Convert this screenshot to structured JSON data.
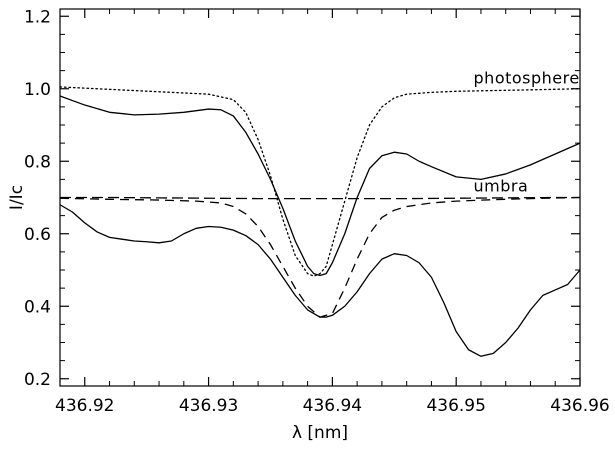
{
  "chart_data": {
    "type": "line",
    "xlabel": "λ [nm]",
    "ylabel": "I/Ic",
    "xlim": [
      436.918,
      436.96
    ],
    "ylim": [
      0.18,
      1.22
    ],
    "x_ticks": [
      436.92,
      436.93,
      436.94,
      436.95,
      436.96
    ],
    "x_tick_labels": [
      "436.92",
      "436.93",
      "436.94",
      "436.95",
      "436.96"
    ],
    "y_ticks": [
      0.2,
      0.4,
      0.6,
      0.8,
      1.0,
      1.2
    ],
    "y_tick_labels": [
      "0.2",
      "0.4",
      "0.6",
      "0.8",
      "1.0",
      "1.2"
    ],
    "grid": false,
    "annotations": [
      {
        "text": "photosphere",
        "x": 436.9514,
        "y": 1.015
      },
      {
        "text": "umbra",
        "x": 436.9514,
        "y": 0.716
      }
    ],
    "series": [
      {
        "style": "dotted",
        "x": [
          436.918,
          436.921,
          436.924,
          436.927,
          436.93,
          436.932,
          436.933,
          436.934,
          436.935,
          436.936,
          436.937,
          436.938,
          436.9385,
          436.939,
          436.9395,
          436.94,
          436.941,
          436.942,
          436.943,
          436.944,
          436.945,
          436.946,
          436.948,
          436.95,
          436.953,
          436.956,
          436.96
        ],
        "y": [
          1.005,
          1.0,
          0.995,
          0.99,
          0.985,
          0.97,
          0.935,
          0.86,
          0.76,
          0.64,
          0.54,
          0.49,
          0.483,
          0.49,
          0.51,
          0.57,
          0.69,
          0.81,
          0.9,
          0.95,
          0.975,
          0.985,
          0.99,
          0.993,
          0.995,
          0.997,
          1.0
        ]
      },
      {
        "style": "solid",
        "x": [
          436.918,
          436.92,
          436.922,
          436.924,
          436.926,
          436.928,
          436.93,
          436.931,
          436.932,
          436.933,
          436.934,
          436.935,
          436.936,
          436.937,
          436.938,
          436.9385,
          436.939,
          436.9395,
          436.94,
          436.941,
          436.942,
          436.943,
          436.944,
          436.945,
          436.946,
          436.947,
          436.948,
          436.95,
          436.952,
          436.954,
          436.956,
          436.958,
          436.96
        ],
        "y": [
          0.98,
          0.955,
          0.935,
          0.928,
          0.93,
          0.935,
          0.944,
          0.942,
          0.925,
          0.88,
          0.82,
          0.75,
          0.67,
          0.58,
          0.51,
          0.49,
          0.485,
          0.49,
          0.52,
          0.6,
          0.7,
          0.78,
          0.815,
          0.825,
          0.82,
          0.8,
          0.785,
          0.757,
          0.75,
          0.765,
          0.79,
          0.82,
          0.85
        ]
      },
      {
        "style": "long-dash",
        "x": [
          436.918,
          436.922,
          436.926,
          436.93,
          436.934,
          436.938,
          436.942,
          436.946,
          436.95,
          436.954,
          436.958,
          436.96
        ],
        "y": [
          0.7,
          0.7,
          0.699,
          0.698,
          0.697,
          0.697,
          0.697,
          0.697,
          0.698,
          0.699,
          0.7,
          0.7
        ]
      },
      {
        "style": "dashed",
        "x": [
          436.918,
          436.922,
          436.926,
          436.929,
          436.931,
          436.932,
          436.933,
          436.934,
          436.935,
          436.936,
          436.937,
          436.938,
          436.939,
          436.94,
          436.941,
          436.942,
          436.943,
          436.944,
          436.945,
          436.946,
          436.948,
          436.95,
          436.953,
          436.956,
          436.96
        ],
        "y": [
          0.698,
          0.695,
          0.693,
          0.69,
          0.685,
          0.675,
          0.655,
          0.62,
          0.57,
          0.51,
          0.45,
          0.4,
          0.37,
          0.38,
          0.45,
          0.53,
          0.6,
          0.645,
          0.665,
          0.675,
          0.685,
          0.69,
          0.694,
          0.697,
          0.7
        ]
      },
      {
        "style": "solid",
        "x": [
          436.918,
          436.919,
          436.92,
          436.921,
          436.922,
          436.923,
          436.924,
          436.925,
          436.926,
          436.927,
          436.928,
          436.929,
          436.93,
          436.931,
          436.932,
          436.933,
          436.934,
          436.935,
          436.936,
          436.937,
          436.938,
          436.939,
          436.9395,
          436.94,
          436.941,
          436.942,
          436.943,
          436.944,
          436.945,
          436.946,
          436.947,
          436.948,
          436.949,
          436.95,
          436.951,
          436.952,
          436.953,
          436.954,
          436.955,
          436.956,
          436.957,
          436.958,
          436.959,
          436.96
        ],
        "y": [
          0.68,
          0.66,
          0.63,
          0.605,
          0.59,
          0.585,
          0.58,
          0.578,
          0.575,
          0.58,
          0.6,
          0.615,
          0.62,
          0.618,
          0.61,
          0.595,
          0.57,
          0.53,
          0.48,
          0.43,
          0.39,
          0.37,
          0.37,
          0.375,
          0.4,
          0.44,
          0.49,
          0.53,
          0.545,
          0.54,
          0.52,
          0.48,
          0.41,
          0.33,
          0.28,
          0.262,
          0.27,
          0.3,
          0.34,
          0.39,
          0.43,
          0.445,
          0.46,
          0.5
        ]
      }
    ]
  }
}
